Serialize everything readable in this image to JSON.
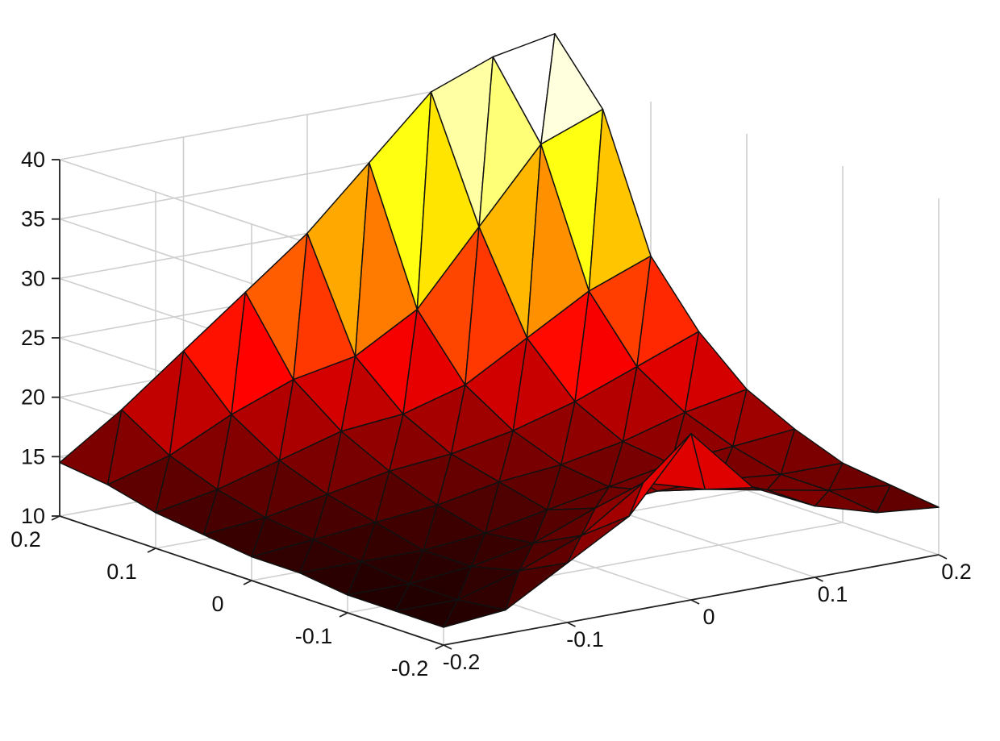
{
  "chart_data": {
    "type": "surface",
    "title": "",
    "xlabel": "",
    "ylabel": "",
    "zlabel": "",
    "colormap": "hot",
    "grid": true,
    "xlim": [
      -0.2,
      0.2
    ],
    "ylim": [
      -0.2,
      0.2
    ],
    "zlim": [
      10,
      40
    ],
    "x_ticks": [
      -0.2,
      -0.1,
      0,
      0.1,
      0.2
    ],
    "y_ticks": [
      -0.2,
      -0.1,
      0,
      0.1,
      0.2
    ],
    "z_ticks": [
      10,
      15,
      20,
      25,
      30,
      35,
      40
    ],
    "x_tick_labels": [
      "-0.2",
      "-0.1",
      "0",
      "0.1",
      "0.2"
    ],
    "y_tick_labels": [
      "-0.2",
      "-0.1",
      "0",
      "0.1",
      "0.2"
    ],
    "z_tick_labels": [
      "10",
      "15",
      "20",
      "25",
      "30",
      "35",
      "40"
    ],
    "x": [
      -0.2,
      -0.15,
      -0.1,
      -0.05,
      0,
      0.05,
      0.1,
      0.15,
      0.2
    ],
    "y": [
      -0.2,
      -0.15,
      -0.1,
      -0.05,
      0,
      0.05,
      0.1,
      0.15,
      0.2
    ],
    "z": [
      [
        11.5,
        12.0,
        15.0,
        18.0,
        24.0,
        18.5,
        16.0,
        14.5,
        14.0
      ],
      [
        11.5,
        11.5,
        13.0,
        15.0,
        18.5,
        17.0,
        16.0,
        15.0,
        14.5
      ],
      [
        11.5,
        11.5,
        12.0,
        13.0,
        15.0,
        15.5,
        15.5,
        15.0,
        15.0
      ],
      [
        12.0,
        12.0,
        12.0,
        12.5,
        13.5,
        14.5,
        15.5,
        16.0,
        16.5
      ],
      [
        12.0,
        12.5,
        13.0,
        13.5,
        14.5,
        15.0,
        16.0,
        17.5,
        18.5
      ],
      [
        12.5,
        13.0,
        14.0,
        15.0,
        15.5,
        16.5,
        18.0,
        20.0,
        22.0
      ],
      [
        13.0,
        14.0,
        15.5,
        17.0,
        17.5,
        19.0,
        22.0,
        25.0,
        27.0
      ],
      [
        14.0,
        15.5,
        18.0,
        20.0,
        21.0,
        24.0,
        30.0,
        36.0,
        38.0
      ],
      [
        14.5,
        18.0,
        22.0,
        26.0,
        30.0,
        35.0,
        40.0,
        42.0,
        43.0
      ]
    ]
  }
}
